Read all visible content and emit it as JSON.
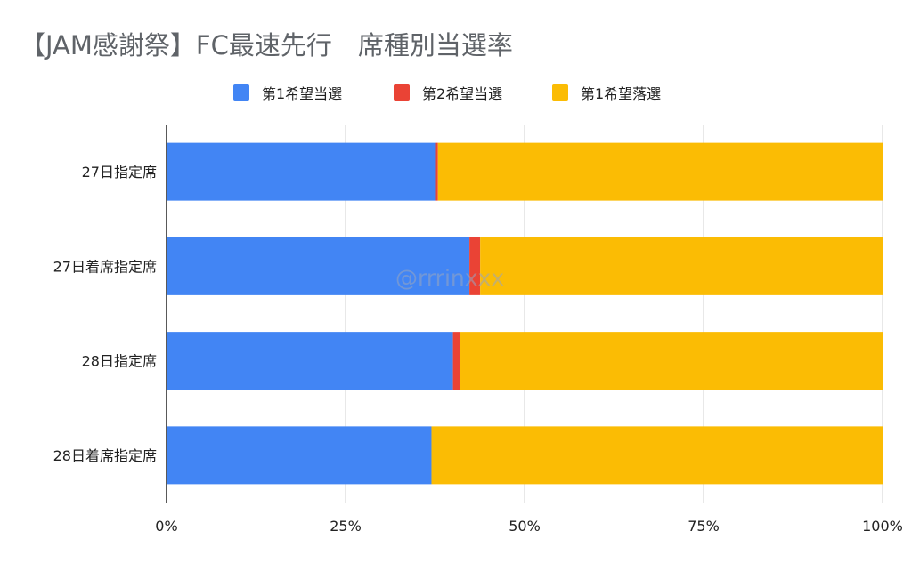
{
  "title": "【JAM感謝祭】FC最速先行　席種別当選率",
  "watermark": "@rrrinxxx",
  "colors": {
    "first_choice_win": "#4285f4",
    "second_choice_win": "#ea4335",
    "first_choice_lose": "#fbbc04",
    "grid": "#d0d0d0",
    "axis": "#222222"
  },
  "legend": [
    {
      "label": "第1希望当選",
      "color": "#4285f4"
    },
    {
      "label": "第2希望当選",
      "color": "#ea4335"
    },
    {
      "label": "第1希望落選",
      "color": "#fbbc04"
    }
  ],
  "chart_data": {
    "type": "bar",
    "orientation": "horizontal",
    "stacked": "percent",
    "title": "【JAM感謝祭】FC最速先行　席種別当選率",
    "categories": [
      "27日指定席",
      "27日着席指定席",
      "28日指定席",
      "28日着席指定席"
    ],
    "series": [
      {
        "name": "第1希望当選",
        "values": [
          37.5,
          42.3,
          40.0,
          37.0
        ]
      },
      {
        "name": "第2希望当選",
        "values": [
          0.4,
          1.5,
          1.0,
          0.0
        ]
      },
      {
        "name": "第1希望落選",
        "values": [
          62.1,
          56.2,
          59.0,
          63.0
        ]
      }
    ],
    "x_ticks": [
      "0%",
      "25%",
      "50%",
      "75%",
      "100%"
    ],
    "xlim": [
      0,
      100
    ],
    "grid": true,
    "legend_position": "top"
  }
}
